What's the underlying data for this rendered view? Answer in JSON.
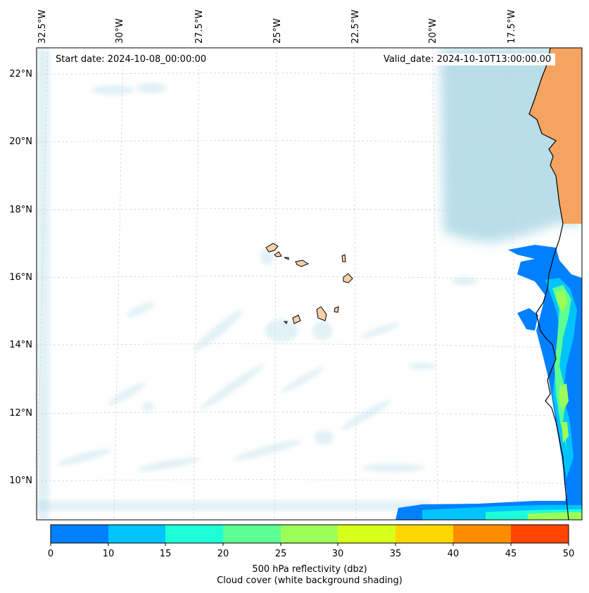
{
  "map": {
    "start_date": "Start date: 2024-10-08_00:00:00",
    "valid_date": "Valid_date: 2024-10-10T13:00:00.00",
    "lon_labels": [
      "32.5°W",
      "30°W",
      "27.5°W",
      "25°W",
      "22.5°W",
      "20°W",
      "17.5°W"
    ],
    "lat_labels": [
      "22°N",
      "20°N",
      "18°N",
      "16°N",
      "14°N",
      "12°N",
      "10°N"
    ],
    "colors": {
      "land": "#f4a460",
      "island": "#f9cfa8",
      "cloud": "#add8e6",
      "coastline": "#000000",
      "gridline": "#cccccc"
    }
  },
  "colorbar": {
    "ticks": [
      "0",
      "10",
      "15",
      "20",
      "25",
      "30",
      "35",
      "40",
      "45",
      "50"
    ],
    "colors": [
      "#0080ff",
      "#00c4ff",
      "#1effd8",
      "#5cff94",
      "#9cff58",
      "#d8ff1a",
      "#ffd700",
      "#ff8c00",
      "#ff4500"
    ],
    "label": "500 hPa reflectivity (dbz)",
    "sublabel": "Cloud cover (white background shading)"
  }
}
